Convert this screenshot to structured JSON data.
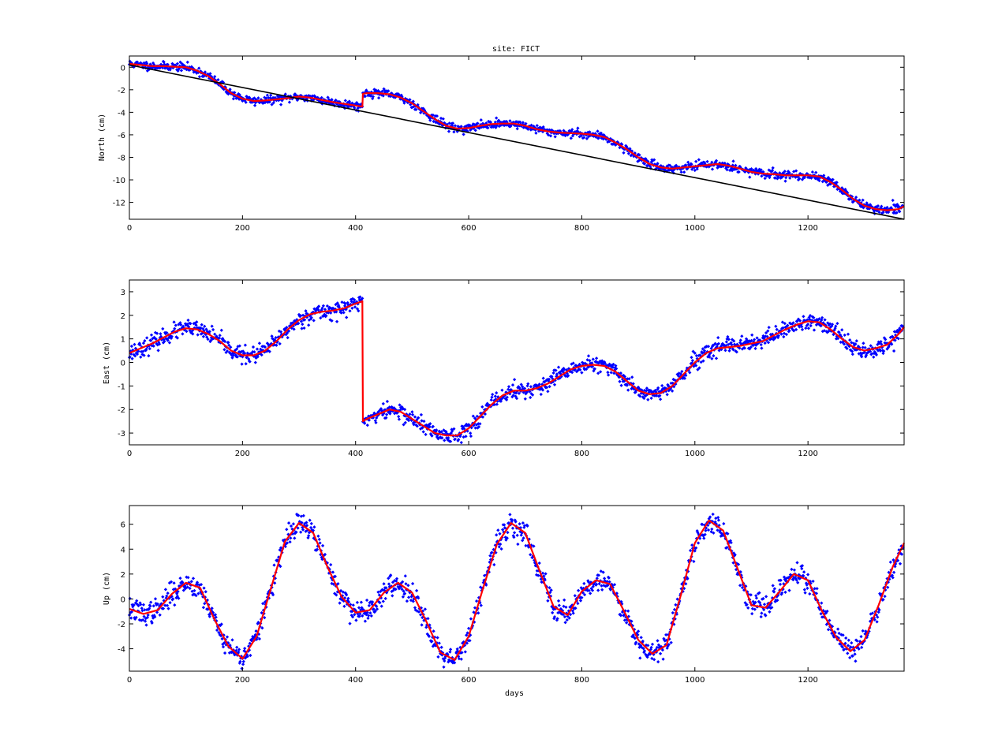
{
  "title": "site: FICT",
  "xlabel": "days",
  "colors": {
    "points": "#0000ff",
    "fit": "#ff0000",
    "trend": "#000000",
    "axes": "#000000"
  },
  "chart_data": [
    {
      "type": "scatter",
      "title": "site: FICT",
      "xlabel": "",
      "ylabel": "North (cm)",
      "xlim": [
        0,
        1370
      ],
      "ylim": [
        -13.5,
        1
      ],
      "xticks": [
        0,
        200,
        400,
        600,
        800,
        1000,
        1200
      ],
      "yticks": [
        0,
        -2,
        -4,
        -6,
        -8,
        -10,
        -12
      ],
      "grid": false,
      "series": [
        {
          "style": "points",
          "x": [
            0,
            50,
            100,
            150,
            200,
            250,
            300,
            350,
            412
          ],
          "y": [
            0.3,
            0.1,
            0.0,
            -1.3,
            -2.8,
            -2.8,
            -2.7,
            -3.1,
            -3.5
          ]
        },
        {
          "style": "fit-line",
          "x": [
            0,
            20,
            40,
            60,
            80,
            100,
            120,
            140,
            160,
            180,
            200,
            220,
            240,
            260,
            280,
            300,
            320,
            340,
            360,
            380,
            400,
            412,
            413,
            420,
            440,
            460,
            480,
            500,
            520,
            540,
            560,
            580,
            600,
            620,
            640,
            660,
            680,
            700,
            720,
            740,
            760,
            780,
            800,
            820,
            840,
            860,
            880,
            900,
            920,
            940,
            960,
            980,
            1000,
            1020,
            1040,
            1060,
            1080,
            1100,
            1120,
            1140,
            1160,
            1180,
            1200,
            1220,
            1240,
            1260,
            1280,
            1300,
            1320,
            1340,
            1360,
            1370
          ],
          "y": [
            0.3,
            0.2,
            0.1,
            0.1,
            0.05,
            0.0,
            -0.3,
            -0.8,
            -1.5,
            -2.3,
            -2.8,
            -3.0,
            -2.95,
            -2.85,
            -2.75,
            -2.6,
            -2.7,
            -2.9,
            -3.1,
            -3.25,
            -3.4,
            -3.5,
            -2.35,
            -2.3,
            -2.3,
            -2.4,
            -2.7,
            -3.2,
            -3.9,
            -4.6,
            -5.2,
            -5.45,
            -5.4,
            -5.2,
            -5.05,
            -5.0,
            -5.0,
            -5.2,
            -5.5,
            -5.7,
            -5.8,
            -5.85,
            -5.9,
            -6.0,
            -6.2,
            -6.7,
            -7.3,
            -8.0,
            -8.6,
            -8.9,
            -9.0,
            -8.9,
            -8.8,
            -8.7,
            -8.6,
            -8.75,
            -9.0,
            -9.3,
            -9.45,
            -9.5,
            -9.6,
            -9.6,
            -9.6,
            -9.7,
            -10.2,
            -10.9,
            -11.7,
            -12.3,
            -12.6,
            -12.7,
            -12.6,
            -12.35
          ]
        },
        {
          "style": "trend-line",
          "x": [
            0,
            1370
          ],
          "y": [
            0.2,
            -13.5
          ]
        }
      ]
    },
    {
      "type": "scatter",
      "title": "",
      "xlabel": "",
      "ylabel": "East (cm)",
      "xlim": [
        0,
        1370
      ],
      "ylim": [
        -3.5,
        3.5
      ],
      "xticks": [
        0,
        200,
        400,
        600,
        800,
        1000,
        1200
      ],
      "yticks": [
        3,
        2,
        1,
        0,
        -1,
        -2,
        -3
      ],
      "grid": false,
      "series": [
        {
          "style": "fit-line",
          "x": [
            0,
            20,
            40,
            60,
            80,
            100,
            120,
            140,
            160,
            180,
            200,
            220,
            240,
            260,
            280,
            300,
            320,
            340,
            360,
            380,
            400,
            412,
            413,
            420,
            440,
            460,
            480,
            500,
            520,
            540,
            560,
            580,
            600,
            620,
            640,
            660,
            680,
            700,
            720,
            740,
            760,
            780,
            800,
            820,
            840,
            860,
            880,
            900,
            920,
            940,
            960,
            980,
            1000,
            1020,
            1040,
            1060,
            1080,
            1100,
            1120,
            1140,
            1160,
            1180,
            1200,
            1220,
            1240,
            1260,
            1280,
            1300,
            1320,
            1340,
            1360,
            1370
          ],
          "y": [
            0.4,
            0.6,
            0.8,
            1.05,
            1.3,
            1.45,
            1.4,
            1.2,
            0.9,
            0.5,
            0.3,
            0.3,
            0.5,
            0.9,
            1.4,
            1.8,
            2.05,
            2.15,
            2.2,
            2.3,
            2.5,
            2.6,
            -2.5,
            -2.4,
            -2.2,
            -2.0,
            -2.1,
            -2.4,
            -2.7,
            -3.0,
            -3.1,
            -3.1,
            -2.8,
            -2.3,
            -1.8,
            -1.4,
            -1.2,
            -1.2,
            -1.1,
            -0.9,
            -0.6,
            -0.3,
            -0.15,
            -0.1,
            -0.15,
            -0.4,
            -0.8,
            -1.2,
            -1.35,
            -1.3,
            -1.0,
            -0.5,
            0.0,
            0.4,
            0.6,
            0.65,
            0.7,
            0.8,
            0.9,
            1.15,
            1.4,
            1.6,
            1.75,
            1.7,
            1.4,
            1.0,
            0.65,
            0.5,
            0.6,
            0.75,
            1.2,
            1.5
          ]
        }
      ]
    },
    {
      "type": "scatter",
      "title": "",
      "xlabel": "days",
      "ylabel": "Up (cm)",
      "xlim": [
        0,
        1370
      ],
      "ylim": [
        -5.8,
        7.5
      ],
      "xticks": [
        0,
        200,
        400,
        600,
        800,
        1000,
        1200
      ],
      "yticks": [
        6,
        4,
        2,
        0,
        -2,
        -4
      ],
      "grid": false,
      "series": [
        {
          "style": "fit-line",
          "x": [
            0,
            25,
            50,
            75,
            100,
            125,
            150,
            175,
            200,
            225,
            250,
            275,
            300,
            325,
            350,
            375,
            400,
            425,
            450,
            475,
            500,
            525,
            550,
            575,
            600,
            625,
            650,
            675,
            700,
            725,
            750,
            775,
            800,
            825,
            850,
            875,
            900,
            925,
            950,
            975,
            1000,
            1025,
            1050,
            1075,
            1100,
            1125,
            1150,
            1175,
            1200,
            1225,
            1250,
            1275,
            1300,
            1325,
            1350,
            1370
          ],
          "y": [
            -0.8,
            -1.2,
            -0.9,
            0.4,
            1.3,
            0.9,
            -1.6,
            -3.8,
            -4.8,
            -3.0,
            0.8,
            4.6,
            6.1,
            5.3,
            2.6,
            0.2,
            -1.1,
            -0.9,
            0.5,
            1.3,
            0.5,
            -1.8,
            -4.3,
            -4.9,
            -3.0,
            0.8,
            4.4,
            6.1,
            5.3,
            2.3,
            -0.6,
            -1.3,
            0.6,
            1.5,
            1.2,
            -1.0,
            -3.3,
            -4.4,
            -3.7,
            0.3,
            4.5,
            6.3,
            5.5,
            2.5,
            -0.5,
            -0.7,
            0.6,
            2.0,
            1.5,
            -1.0,
            -3.1,
            -4.2,
            -3.3,
            -0.5,
            2.6,
            4.5
          ]
        }
      ]
    }
  ]
}
